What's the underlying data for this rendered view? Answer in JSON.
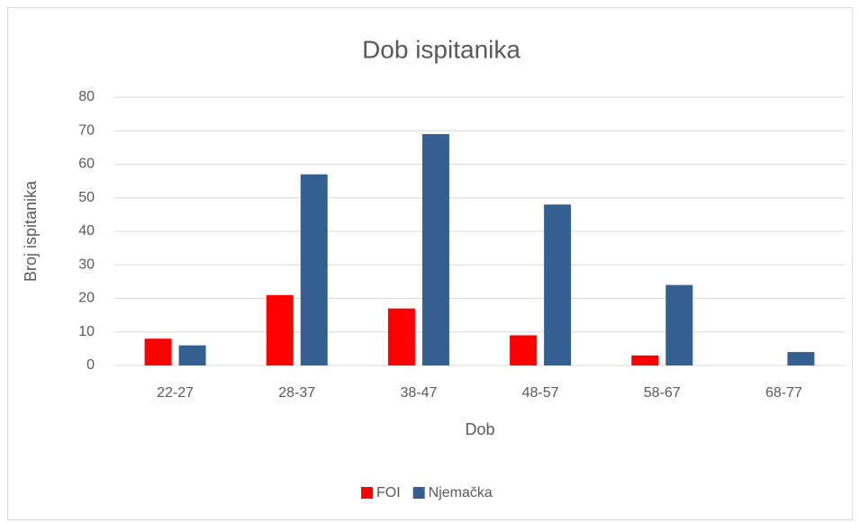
{
  "chart_data": {
    "type": "bar",
    "title": "Dob ispitanika",
    "x_label": "Dob",
    "y_label": "Broj ispitanika",
    "categories": [
      "22-27",
      "28-37",
      "38-47",
      "48-57",
      "58-67",
      "68-77"
    ],
    "series": [
      {
        "name": "FOI",
        "color": "#ff0000",
        "values": [
          8,
          21,
          17,
          9,
          3,
          0
        ]
      },
      {
        "name": "Njemačka",
        "color": "#336091",
        "values": [
          6,
          57,
          69,
          48,
          24,
          4
        ]
      }
    ],
    "ylim": [
      0,
      80
    ],
    "yticks": [
      0,
      10,
      20,
      30,
      40,
      50,
      60,
      70,
      80
    ],
    "grid": true,
    "legend": "bottom"
  }
}
